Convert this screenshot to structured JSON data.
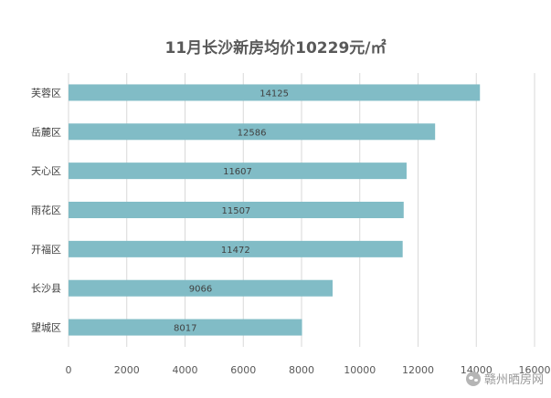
{
  "chart_data": {
    "type": "bar",
    "orientation": "horizontal",
    "title": "11月长沙新房均价10229元/㎡",
    "categories": [
      "芙蓉区",
      "岳麓区",
      "天心区",
      "雨花区",
      "开福区",
      "长沙县",
      "望城区"
    ],
    "values": [
      14125,
      12586,
      11607,
      11507,
      11472,
      9066,
      8017
    ],
    "data_labels": [
      "14125",
      "12586",
      "11607",
      "11507",
      "11472",
      "9066",
      "8017"
    ],
    "x_ticks": [
      "0",
      "2000",
      "4000",
      "6000",
      "8000",
      "10000",
      "12000",
      "14000",
      "16000"
    ],
    "xlim": [
      0,
      16000
    ],
    "xlabel": "",
    "ylabel": "",
    "grid": true,
    "legend": "none",
    "bar_color": "#81bcc6"
  },
  "watermark": {
    "icon": "wechat-icon",
    "text": "赣州晒房网"
  }
}
